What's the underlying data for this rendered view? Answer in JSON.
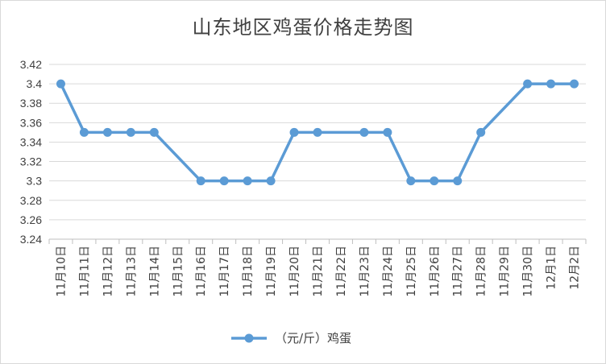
{
  "chart_data": {
    "type": "line",
    "title": "山东地区鸡蛋价格走势图",
    "xlabel": "",
    "ylabel": "",
    "ylim": [
      3.24,
      3.42
    ],
    "yticks": [
      3.24,
      3.26,
      3.28,
      3.3,
      3.32,
      3.34,
      3.36,
      3.38,
      3.4,
      3.42
    ],
    "ytick_labels": [
      "3.24",
      "3.26",
      "3.28",
      "3.3",
      "3.32",
      "3.34",
      "3.36",
      "3.38",
      "3.4",
      "3.42"
    ],
    "grid": true,
    "legend_position": "bottom",
    "categories": [
      "11月10日",
      "11月11日",
      "11月12日",
      "11月13日",
      "11月14日",
      "11月15日",
      "11月16日",
      "11月17日",
      "11月18日",
      "11月19日",
      "11月20日",
      "11月21日",
      "11月22日",
      "11月23日",
      "11月24日",
      "11月25日",
      "11月26日",
      "11月27日",
      "11月28日",
      "11月29日",
      "11月30日",
      "12月1日",
      "12月2日"
    ],
    "series": [
      {
        "name": "（元/斤）鸡蛋",
        "color": "#5b9bd5",
        "values": [
          3.4,
          3.35,
          3.35,
          3.35,
          3.35,
          null,
          3.3,
          3.3,
          3.3,
          3.3,
          3.35,
          3.35,
          null,
          3.35,
          3.35,
          3.3,
          3.3,
          3.3,
          3.35,
          null,
          3.4,
          3.4,
          3.4
        ]
      }
    ]
  }
}
